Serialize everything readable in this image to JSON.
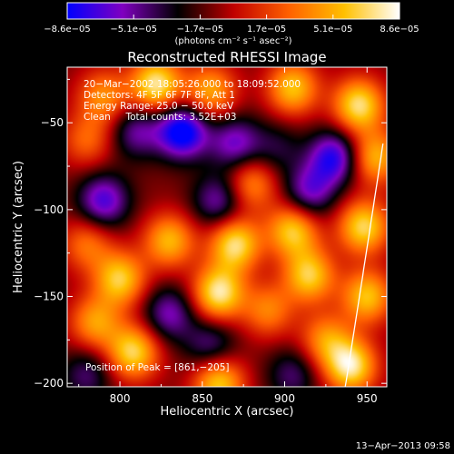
{
  "chart_data": {
    "type": "heatmap",
    "title": "Reconstructed RHESSI Image",
    "xlabel": "Heliocentric X (arcsec)",
    "ylabel": "Heliocentric Y (arcsec)",
    "xlim": [
      768,
      962
    ],
    "ylim": [
      -202,
      -18
    ],
    "x_ticks": [
      800,
      850,
      900,
      950
    ],
    "y_ticks": [
      -200,
      -150,
      -100,
      -50
    ],
    "x_tick_labels": [
      "800",
      "850",
      "900",
      "950"
    ],
    "y_tick_labels": [
      "−200",
      "−150",
      "−100",
      "−50"
    ],
    "colorbar": {
      "range": [
        -8.6e-05,
        8.6e-05
      ],
      "tick_labels": [
        "−8.6e−05",
        "−5.1e−05",
        "−1.7e−05",
        "1.7e−05",
        "5.1e−05",
        "8.6e−05"
      ],
      "unit_label": "(photons cm⁻² s⁻¹ asec⁻²)",
      "colors": [
        "#0000ff",
        "#8000c0",
        "#000000",
        "#c00000",
        "#ff6000",
        "#ffc000",
        "#ffffff"
      ]
    },
    "annotations": [
      "20−Mar−2002 18:05:26.000 to 18:09:52.000",
      "Detectors: 4F 5F 6F 7F 8F, Att 1",
      "Energy Range: 25.0 − 50.0 keV",
      "Clean     Total counts: 3.52E+03"
    ],
    "peak_label": "Position of Peak = [861,−205]",
    "limb_visible": true,
    "timestamp": "13−Apr−2013 09:58",
    "blobs": [
      {
        "x": 822,
        "y": -28,
        "v": 1.0
      },
      {
        "x": 855,
        "y": -32,
        "v": 0.7
      },
      {
        "x": 905,
        "y": -30,
        "v": 0.8
      },
      {
        "x": 945,
        "y": -40,
        "v": 0.95
      },
      {
        "x": 790,
        "y": -35,
        "v": 0.6
      },
      {
        "x": 810,
        "y": -55,
        "v": -0.5
      },
      {
        "x": 838,
        "y": -55,
        "v": -1.0
      },
      {
        "x": 870,
        "y": -62,
        "v": -0.6
      },
      {
        "x": 780,
        "y": -60,
        "v": 0.45
      },
      {
        "x": 895,
        "y": -65,
        "v": -0.3
      },
      {
        "x": 930,
        "y": -70,
        "v": -0.8
      },
      {
        "x": 955,
        "y": -70,
        "v": 0.75
      },
      {
        "x": 880,
        "y": -85,
        "v": 0.6
      },
      {
        "x": 790,
        "y": -95,
        "v": -0.7
      },
      {
        "x": 860,
        "y": -95,
        "v": -0.55
      },
      {
        "x": 915,
        "y": -90,
        "v": -0.6
      },
      {
        "x": 948,
        "y": -110,
        "v": 0.9
      },
      {
        "x": 830,
        "y": -118,
        "v": 0.75
      },
      {
        "x": 870,
        "y": -120,
        "v": 0.95
      },
      {
        "x": 905,
        "y": -112,
        "v": 0.85
      },
      {
        "x": 780,
        "y": -120,
        "v": 0.5
      },
      {
        "x": 800,
        "y": -140,
        "v": 0.85
      },
      {
        "x": 860,
        "y": -148,
        "v": 1.0
      },
      {
        "x": 915,
        "y": -138,
        "v": 0.85
      },
      {
        "x": 890,
        "y": -158,
        "v": 0.55
      },
      {
        "x": 830,
        "y": -160,
        "v": -0.55
      },
      {
        "x": 785,
        "y": -165,
        "v": 0.65
      },
      {
        "x": 950,
        "y": -150,
        "v": 0.8
      },
      {
        "x": 808,
        "y": -182,
        "v": 0.9
      },
      {
        "x": 855,
        "y": -178,
        "v": -0.45
      },
      {
        "x": 925,
        "y": -175,
        "v": 0.6
      },
      {
        "x": 940,
        "y": -190,
        "v": 1.0
      },
      {
        "x": 780,
        "y": -195,
        "v": -0.4
      },
      {
        "x": 860,
        "y": -200,
        "v": 0.85
      },
      {
        "x": 905,
        "y": -195,
        "v": -0.4
      }
    ]
  }
}
